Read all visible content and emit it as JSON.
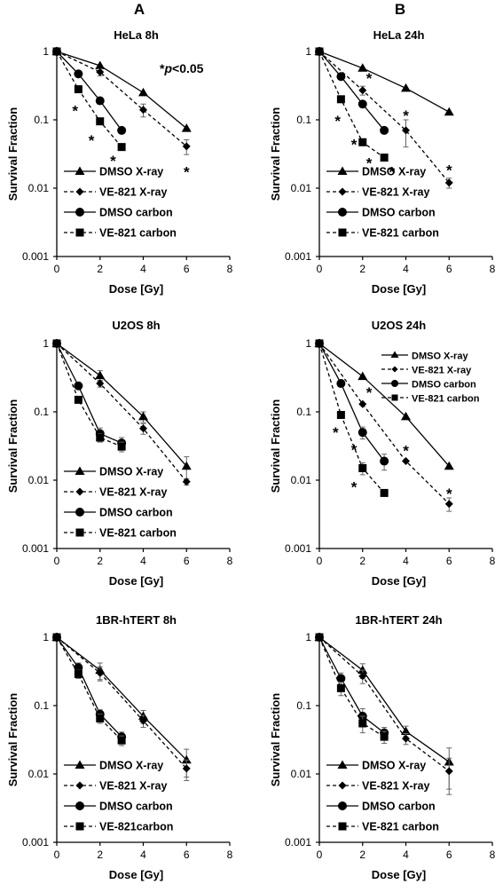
{
  "column_letters": [
    "A",
    "B"
  ],
  "significance_note": {
    "star": "*",
    "p": "p",
    "rest": "<0.05"
  },
  "chart_data": [
    {
      "type": "line",
      "title": "HeLa 8h",
      "xlabel": "Dose [Gy]",
      "ylabel": "Survival Fraction",
      "xlim": [
        0,
        8
      ],
      "ylim": [
        0.001,
        1
      ],
      "yscale": "log",
      "xticks": [
        "0",
        "2",
        "4",
        "6",
        "8"
      ],
      "yticks": [
        "0.001",
        "0.01",
        "0.1",
        "1"
      ],
      "legend": "bottom-left",
      "grid": false,
      "series": [
        {
          "name": "DMSO X-ray",
          "marker": "triangle",
          "dash": false,
          "x": [
            0,
            2,
            4,
            6
          ],
          "y": [
            1,
            0.62,
            0.25,
            0.075
          ],
          "err": [
            0,
            0,
            0,
            0
          ]
        },
        {
          "name": "VE-821 X-ray",
          "marker": "diamond",
          "dash": true,
          "x": [
            0,
            2,
            4,
            6
          ],
          "y": [
            1,
            0.5,
            0.14,
            0.041
          ],
          "err": [
            0,
            0.06,
            0.03,
            0.01
          ]
        },
        {
          "name": "DMSO carbon",
          "marker": "circle",
          "dash": false,
          "x": [
            0,
            1,
            2,
            3
          ],
          "y": [
            1,
            0.47,
            0.19,
            0.07
          ],
          "err": [
            0,
            0,
            0,
            0
          ]
        },
        {
          "name": "VE-821 carbon",
          "marker": "square",
          "dash": true,
          "x": [
            0,
            1,
            2,
            3
          ],
          "y": [
            1,
            0.28,
            0.095,
            0.04
          ],
          "err": [
            0,
            0,
            0,
            0
          ]
        }
      ],
      "annotations": [
        {
          "text": "*",
          "x": 0.85,
          "y": 0.14
        },
        {
          "text": "*",
          "x": 1.6,
          "y": 0.052
        },
        {
          "text": "*",
          "x": 2.6,
          "y": 0.026
        },
        {
          "text": "*",
          "x": 6.0,
          "y": 0.018
        }
      ]
    },
    {
      "type": "line",
      "title": "HeLa 24h",
      "xlabel": "Dose [Gy]",
      "ylabel": "Survival Fraction",
      "xlim": [
        0,
        8
      ],
      "ylim": [
        0.001,
        1
      ],
      "yscale": "log",
      "xticks": [
        "0",
        "2",
        "4",
        "6",
        "8"
      ],
      "yticks": [
        "0.001",
        "0.01",
        "0.1",
        "1"
      ],
      "legend": "bottom-left",
      "grid": false,
      "series": [
        {
          "name": "DMSO X-ray",
          "marker": "triangle",
          "dash": false,
          "x": [
            0,
            2,
            4,
            6
          ],
          "y": [
            1,
            0.57,
            0.29,
            0.13
          ],
          "err": [
            0,
            0,
            0,
            0
          ]
        },
        {
          "name": "VE-821 X-ray",
          "marker": "diamond",
          "dash": true,
          "x": [
            0,
            2,
            4,
            6
          ],
          "y": [
            1,
            0.27,
            0.07,
            0.012
          ],
          "err": [
            0,
            0.04,
            0.03,
            0.002
          ]
        },
        {
          "name": "DMSO carbon",
          "marker": "circle",
          "dash": false,
          "x": [
            0,
            1,
            2,
            3
          ],
          "y": [
            1,
            0.43,
            0.17,
            0.07
          ],
          "err": [
            0,
            0,
            0,
            0
          ]
        },
        {
          "name": "VE-821 carbon",
          "marker": "square",
          "dash": true,
          "x": [
            0,
            1,
            2,
            3
          ],
          "y": [
            1,
            0.2,
            0.047,
            0.028
          ],
          "err": [
            0,
            0,
            0,
            0
          ]
        }
      ],
      "annotations": [
        {
          "text": "*",
          "x": 2.3,
          "y": 0.42
        },
        {
          "text": "*",
          "x": 0.85,
          "y": 0.1
        },
        {
          "text": "*",
          "x": 1.6,
          "y": 0.045
        },
        {
          "text": "*",
          "x": 4.0,
          "y": 0.12
        },
        {
          "text": "*",
          "x": 2.3,
          "y": 0.024
        },
        {
          "text": "*",
          "x": 3.35,
          "y": 0.018
        },
        {
          "text": "*",
          "x": 6.0,
          "y": 0.019
        }
      ]
    },
    {
      "type": "line",
      "title": "U2OS 8h",
      "xlabel": "Dose [Gy]",
      "ylabel": "Survival Fraction",
      "xlim": [
        0,
        8
      ],
      "ylim": [
        0.001,
        1
      ],
      "yscale": "log",
      "xticks": [
        "0",
        "2",
        "4",
        "6",
        "8"
      ],
      "yticks": [
        "0.001",
        "0.01",
        "0.1",
        "1"
      ],
      "legend": "bottom-left",
      "grid": false,
      "series": [
        {
          "name": "DMSO X-ray",
          "marker": "triangle",
          "dash": false,
          "x": [
            0,
            2,
            4,
            6
          ],
          "y": [
            1,
            0.34,
            0.085,
            0.016
          ],
          "err": [
            0,
            0.06,
            0.015,
            0.006
          ]
        },
        {
          "name": "VE-821 X-ray",
          "marker": "diamond",
          "dash": true,
          "x": [
            0,
            2,
            4,
            6
          ],
          "y": [
            1,
            0.26,
            0.057,
            0.0095
          ],
          "err": [
            0,
            0.03,
            0.01,
            0.001
          ]
        },
        {
          "name": "DMSO carbon",
          "marker": "circle",
          "dash": false,
          "x": [
            0,
            1,
            2,
            3
          ],
          "y": [
            1,
            0.24,
            0.048,
            0.035
          ],
          "err": [
            0,
            0.02,
            0.01,
            0.007
          ]
        },
        {
          "name": "VE-821 carbon",
          "marker": "square",
          "dash": true,
          "x": [
            0,
            1,
            2,
            3
          ],
          "y": [
            1,
            0.15,
            0.042,
            0.031
          ],
          "err": [
            0,
            0.01,
            0.006,
            0.005
          ]
        }
      ],
      "annotations": []
    },
    {
      "type": "line",
      "title": "U2OS 24h",
      "xlabel": "Dose [Gy]",
      "ylabel": "Survival Fraction",
      "xlim": [
        0,
        8
      ],
      "ylim": [
        0.001,
        1
      ],
      "yscale": "log",
      "xticks": [
        "0",
        "2",
        "4",
        "6",
        "8"
      ],
      "yticks": [
        "0.001",
        "0.01",
        "0.1",
        "1"
      ],
      "legend": "top-right",
      "grid": false,
      "series": [
        {
          "name": "DMSO X-ray",
          "marker": "triangle",
          "dash": false,
          "x": [
            0,
            2,
            4,
            6
          ],
          "y": [
            1,
            0.33,
            0.085,
            0.016
          ],
          "err": [
            0,
            0,
            0,
            0
          ]
        },
        {
          "name": "VE-821 X-ray",
          "marker": "diamond",
          "dash": true,
          "x": [
            0,
            2,
            4,
            6
          ],
          "y": [
            1,
            0.13,
            0.019,
            0.0045
          ],
          "err": [
            0,
            0,
            0,
            0.001
          ]
        },
        {
          "name": "DMSO carbon",
          "marker": "circle",
          "dash": false,
          "x": [
            0,
            1,
            2,
            3
          ],
          "y": [
            1,
            0.26,
            0.05,
            0.019
          ],
          "err": [
            0,
            0,
            0.01,
            0.005
          ]
        },
        {
          "name": "VE-821 carbon",
          "marker": "square",
          "dash": true,
          "x": [
            0,
            1,
            2,
            3
          ],
          "y": [
            1,
            0.09,
            0.015,
            0.0065
          ],
          "err": [
            0,
            0.01,
            0.003,
            0
          ]
        }
      ],
      "annotations": [
        {
          "text": "*",
          "x": 2.3,
          "y": 0.2
        },
        {
          "text": "*",
          "x": 0.75,
          "y": 0.052
        },
        {
          "text": "*",
          "x": 4.0,
          "y": 0.028
        },
        {
          "text": "*",
          "x": 1.6,
          "y": 0.029
        },
        {
          "text": "*",
          "x": 1.6,
          "y": 0.0082
        },
        {
          "text": "*",
          "x": 6.0,
          "y": 0.0066
        }
      ]
    },
    {
      "type": "line",
      "title": "1BR-hTERT 8h",
      "xlabel": "Dose [Gy]",
      "ylabel": "Survival Fraction",
      "xlim": [
        0,
        8
      ],
      "ylim": [
        0.001,
        1
      ],
      "yscale": "log",
      "xticks": [
        "0",
        "2",
        "4",
        "6",
        "8"
      ],
      "yticks": [
        "0.001",
        "0.01",
        "0.1",
        "1"
      ],
      "legend": "bottom-left",
      "grid": false,
      "series": [
        {
          "name": "DMSO X-ray",
          "marker": "triangle",
          "dash": false,
          "x": [
            0,
            2,
            4,
            6
          ],
          "y": [
            1,
            0.33,
            0.07,
            0.016
          ],
          "err": [
            0,
            0.09,
            0.015,
            0.007
          ]
        },
        {
          "name": "VE-821 X-ray",
          "marker": "diamond",
          "dash": true,
          "x": [
            0,
            2,
            4,
            6
          ],
          "y": [
            1,
            0.3,
            0.06,
            0.012
          ],
          "err": [
            0,
            0.07,
            0.012,
            0.004
          ]
        },
        {
          "name": "DMSO carbon",
          "marker": "circle",
          "dash": false,
          "x": [
            0,
            1,
            2,
            3
          ],
          "y": [
            1,
            0.36,
            0.075,
            0.035
          ],
          "err": [
            0,
            0.06,
            0.012,
            0.006
          ]
        },
        {
          "name": "VE-821carbon",
          "marker": "square",
          "dash": true,
          "x": [
            0,
            1,
            2,
            3
          ],
          "y": [
            1,
            0.29,
            0.065,
            0.031
          ],
          "err": [
            0,
            0.04,
            0.01,
            0.005
          ]
        }
      ],
      "annotations": []
    },
    {
      "type": "line",
      "title": "1BR-hTERT 24h",
      "xlabel": "Dose [Gy]",
      "ylabel": "Survival Fraction",
      "xlim": [
        0,
        8
      ],
      "ylim": [
        0.001,
        1
      ],
      "yscale": "log",
      "xticks": [
        "0",
        "2",
        "4",
        "6",
        "8"
      ],
      "yticks": [
        "0.001",
        "0.01",
        "0.1",
        "1"
      ],
      "legend": "bottom-left",
      "grid": false,
      "series": [
        {
          "name": "DMSO X-ray",
          "marker": "triangle",
          "dash": false,
          "x": [
            0,
            2,
            4,
            6
          ],
          "y": [
            1,
            0.33,
            0.042,
            0.015
          ],
          "err": [
            0,
            0.08,
            0.008,
            0.009
          ]
        },
        {
          "name": "VE-821 X-ray",
          "marker": "diamond",
          "dash": true,
          "x": [
            0,
            2,
            4,
            6
          ],
          "y": [
            1,
            0.27,
            0.033,
            0.011
          ],
          "err": [
            0,
            0.06,
            0.006,
            0.006
          ]
        },
        {
          "name": "DMSO carbon",
          "marker": "circle",
          "dash": false,
          "x": [
            0,
            1,
            2,
            3
          ],
          "y": [
            1,
            0.25,
            0.07,
            0.04
          ],
          "err": [
            0,
            0.05,
            0.02,
            0.008
          ]
        },
        {
          "name": "VE-821 carbon",
          "marker": "square",
          "dash": true,
          "x": [
            0,
            1,
            2,
            3
          ],
          "y": [
            1,
            0.18,
            0.055,
            0.035
          ],
          "err": [
            0,
            0.04,
            0.015,
            0.007
          ]
        }
      ],
      "annotations": []
    }
  ]
}
